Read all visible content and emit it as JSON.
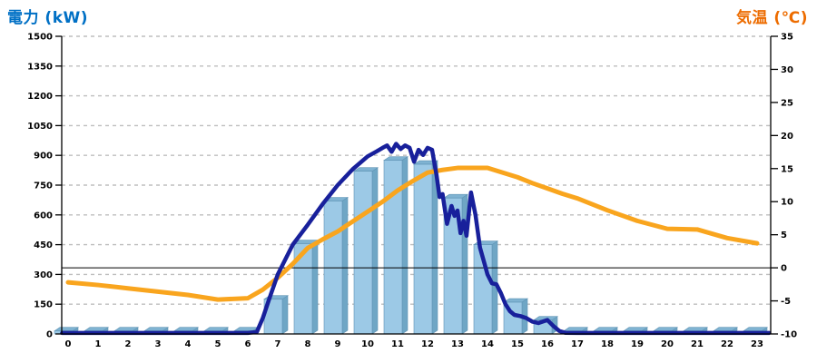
{
  "chart_data": {
    "type": [
      "bar",
      "line"
    ],
    "title": "",
    "left_axis": {
      "label": "電力 (kW)",
      "label_color": "#0070C5",
      "min": 0,
      "max": 1500,
      "tick_step": 150,
      "ticks": [
        0,
        150,
        300,
        450,
        600,
        750,
        900,
        1050,
        1200,
        1350,
        1500
      ]
    },
    "right_axis": {
      "label": "気温 (℃)",
      "label_color": "#ED6C00",
      "min": -10,
      "max": 35,
      "tick_step": 5,
      "ticks": [
        -10,
        -5,
        0,
        5,
        10,
        15,
        20,
        25,
        30,
        35
      ]
    },
    "x_axis": {
      "label": "",
      "hours": [
        0,
        1,
        2,
        3,
        4,
        5,
        6,
        7,
        8,
        9,
        10,
        11,
        12,
        13,
        14,
        15,
        16,
        17,
        18,
        19,
        20,
        21,
        22,
        23
      ]
    },
    "grid": {
      "dashed": true,
      "color": "#BEBEBE",
      "zero_temp_solid_line": true
    },
    "series": [
      {
        "name": "power-bars",
        "type": "bar",
        "axis": "left",
        "fill_color": "#9CC9E6",
        "top_face_color": "#7FB3D2",
        "side_face_color": "#6FA6C5",
        "outline_color": "#5F93B4",
        "categories": [
          0,
          1,
          2,
          3,
          4,
          5,
          6,
          7,
          8,
          9,
          10,
          11,
          12,
          13,
          14,
          15,
          16,
          17,
          18,
          19,
          20,
          21,
          22,
          23
        ],
        "values": [
          15,
          15,
          15,
          15,
          15,
          15,
          15,
          175,
          455,
          670,
          820,
          875,
          855,
          685,
          450,
          160,
          70,
          15,
          15,
          15,
          15,
          15,
          15,
          15
        ]
      },
      {
        "name": "power-line",
        "type": "line",
        "axis": "left",
        "color": "#18209B",
        "points": [
          [
            -0.2,
            5
          ],
          [
            1,
            5
          ],
          [
            2,
            5
          ],
          [
            3,
            5
          ],
          [
            4,
            5
          ],
          [
            5,
            5
          ],
          [
            6,
            5
          ],
          [
            6.3,
            10
          ],
          [
            6.5,
            80
          ],
          [
            6.7,
            170
          ],
          [
            7,
            300
          ],
          [
            7.5,
            450
          ],
          [
            8,
            550
          ],
          [
            8.5,
            655
          ],
          [
            9,
            750
          ],
          [
            9.5,
            830
          ],
          [
            10,
            895
          ],
          [
            10.3,
            920
          ],
          [
            10.5,
            938
          ],
          [
            10.65,
            950
          ],
          [
            10.8,
            918
          ],
          [
            10.95,
            958
          ],
          [
            11.1,
            932
          ],
          [
            11.25,
            950
          ],
          [
            11.4,
            938
          ],
          [
            11.55,
            868
          ],
          [
            11.7,
            928
          ],
          [
            11.85,
            902
          ],
          [
            12,
            938
          ],
          [
            12.15,
            928
          ],
          [
            12.3,
            800
          ],
          [
            12.4,
            690
          ],
          [
            12.5,
            705
          ],
          [
            12.65,
            555
          ],
          [
            12.8,
            645
          ],
          [
            12.9,
            595
          ],
          [
            13,
            622
          ],
          [
            13.1,
            508
          ],
          [
            13.2,
            570
          ],
          [
            13.3,
            495
          ],
          [
            13.45,
            713
          ],
          [
            13.6,
            600
          ],
          [
            13.75,
            435
          ],
          [
            13.9,
            355
          ],
          [
            14,
            300
          ],
          [
            14.15,
            255
          ],
          [
            14.3,
            250
          ],
          [
            14.45,
            205
          ],
          [
            14.6,
            150
          ],
          [
            14.75,
            115
          ],
          [
            14.9,
            96
          ],
          [
            15.1,
            90
          ],
          [
            15.3,
            80
          ],
          [
            15.5,
            62
          ],
          [
            15.7,
            55
          ],
          [
            15.9,
            65
          ],
          [
            16,
            70
          ],
          [
            16.2,
            40
          ],
          [
            16.4,
            15
          ],
          [
            16.6,
            6
          ],
          [
            17,
            5
          ],
          [
            18,
            5
          ],
          [
            19,
            5
          ],
          [
            20,
            5
          ],
          [
            21,
            5
          ],
          [
            22,
            5
          ],
          [
            23.4,
            5
          ]
        ]
      },
      {
        "name": "temperature-line",
        "type": "line",
        "axis": "right",
        "color": "#F9A51E",
        "points": [
          [
            0,
            -2.2
          ],
          [
            1,
            -2.6
          ],
          [
            2,
            -3.1
          ],
          [
            3,
            -3.6
          ],
          [
            4,
            -4.1
          ],
          [
            5,
            -4.8
          ],
          [
            6,
            -4.6
          ],
          [
            6.5,
            -3.3
          ],
          [
            7,
            -1.5
          ],
          [
            7.5,
            0.6
          ],
          [
            8,
            3
          ],
          [
            8.5,
            4.3
          ],
          [
            9,
            5.5
          ],
          [
            9.5,
            7
          ],
          [
            10,
            8.5
          ],
          [
            10.5,
            10
          ],
          [
            11,
            11.7
          ],
          [
            11.5,
            13.1
          ],
          [
            12,
            14.4
          ],
          [
            12.5,
            14.8
          ],
          [
            13,
            15.1
          ],
          [
            13.5,
            15.1
          ],
          [
            14,
            15.1
          ],
          [
            14.5,
            14.4
          ],
          [
            15,
            13.7
          ],
          [
            15.5,
            12.8
          ],
          [
            16,
            12
          ],
          [
            16.5,
            11.2
          ],
          [
            17,
            10.5
          ],
          [
            18,
            8.7
          ],
          [
            19,
            7.1
          ],
          [
            20,
            5.9
          ],
          [
            21,
            5.8
          ],
          [
            22,
            4.5
          ],
          [
            23,
            3.7
          ]
        ]
      }
    ]
  }
}
